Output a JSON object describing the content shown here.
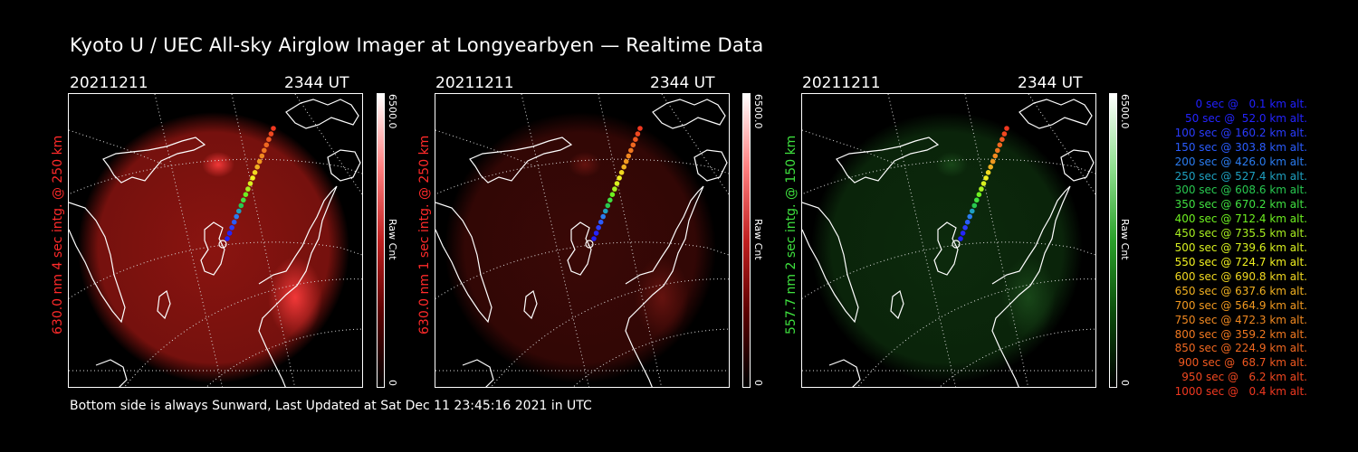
{
  "title": "Kyoto U / UEC All-sky Airglow Imager at Longyearbyen — Realtime Data",
  "panels": [
    {
      "date": "20211211",
      "time": "2344 UT",
      "label": "630.0 nm 4 sec intg. @ 250 km",
      "label_color": "#ff2a2a",
      "cbar_max": "6500.0",
      "cbar_min": "0",
      "cbar_unit": "Raw Cnt",
      "glow": "#8a1410",
      "hotspot": "#ff3c3c"
    },
    {
      "date": "20211211",
      "time": "2344 UT",
      "label": "630.0 nm 1 sec intg. @ 250 km",
      "label_color": "#ff2a2a",
      "cbar_max": "6500.0",
      "cbar_min": "0",
      "cbar_unit": "Raw Cnt",
      "glow": "#3a0806",
      "hotspot": "#6a1410"
    },
    {
      "date": "20211211",
      "time": "2344 UT",
      "label": "557.7 nm 2 sec intg. @ 150 km",
      "label_color": "#3ee03e",
      "cbar_max": "6500.0",
      "cbar_min": "0",
      "cbar_unit": "Raw Cnt",
      "glow": "#0c2a0c",
      "hotspot": "#1a4a1a"
    }
  ],
  "legend": [
    {
      "text": "0 sec @   0.1 km alt.",
      "color": "#2020ff"
    },
    {
      "text": "50 sec @  52.0 km alt.",
      "color": "#2424ff"
    },
    {
      "text": "100 sec @ 160.2 km alt.",
      "color": "#2a3cff"
    },
    {
      "text": "150 sec @ 303.8 km alt.",
      "color": "#2a5cff"
    },
    {
      "text": "200 sec @ 426.0 km alt.",
      "color": "#2a7cf0"
    },
    {
      "text": "250 sec @ 527.4 km alt.",
      "color": "#1ea0c0"
    },
    {
      "text": "300 sec @ 608.6 km alt.",
      "color": "#28c850"
    },
    {
      "text": "350 sec @ 670.2 km alt.",
      "color": "#40e040"
    },
    {
      "text": "400 sec @ 712.4 km alt.",
      "color": "#6ef020"
    },
    {
      "text": "450 sec @ 735.5 km alt.",
      "color": "#a8f020"
    },
    {
      "text": "500 sec @ 739.6 km alt.",
      "color": "#d8f020"
    },
    {
      "text": "550 sec @ 724.7 km alt.",
      "color": "#f0f020"
    },
    {
      "text": "600 sec @ 690.8 km alt.",
      "color": "#f0d820"
    },
    {
      "text": "650 sec @ 637.6 km alt.",
      "color": "#f0b020"
    },
    {
      "text": "700 sec @ 564.9 km alt.",
      "color": "#f09820"
    },
    {
      "text": "750 sec @ 472.3 km alt.",
      "color": "#f08820"
    },
    {
      "text": "800 sec @ 359.2 km alt.",
      "color": "#f07820"
    },
    {
      "text": "850 sec @ 224.9 km alt.",
      "color": "#f06820"
    },
    {
      "text": "900 sec @  68.7 km alt.",
      "color": "#f05820"
    },
    {
      "text": "950 sec @   6.2 km alt.",
      "color": "#f04820"
    },
    {
      "text": "1000 sec @   0.4 km alt.",
      "color": "#f03820"
    }
  ],
  "footer": "Bottom side is always Sunward, Last Updated at Sat Dec 11 23:45:16 2021 in UTC"
}
